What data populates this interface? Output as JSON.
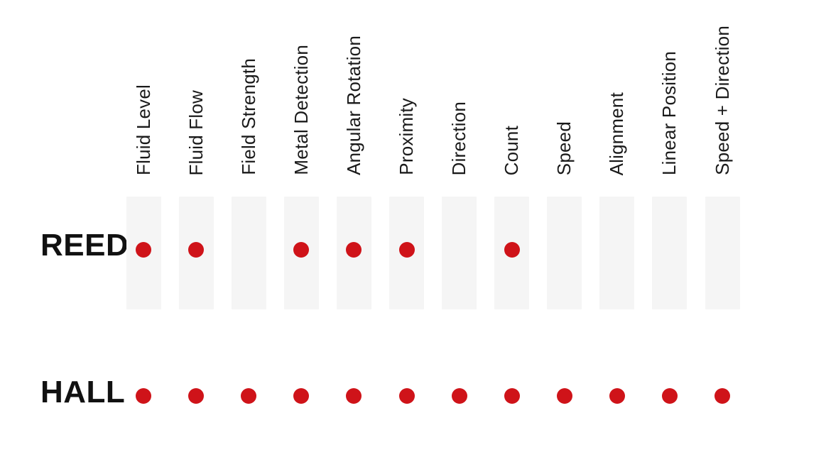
{
  "chart_data": {
    "type": "table",
    "subtype": "dot-matrix-comparison",
    "title": "",
    "categories": [
      "Fluid Level",
      "Fluid Flow",
      "Field Strength",
      "Metal Detection",
      "Angular Rotation",
      "Proximity",
      "Direction",
      "Count",
      "Speed",
      "Alignment",
      "Linear Position",
      "Speed + Direction"
    ],
    "series": [
      {
        "name": "REED",
        "values": [
          1,
          1,
          0,
          1,
          1,
          1,
          0,
          1,
          0,
          0,
          0,
          0
        ]
      },
      {
        "name": "HALL",
        "values": [
          1,
          1,
          1,
          1,
          1,
          1,
          1,
          1,
          1,
          1,
          1,
          1
        ]
      }
    ],
    "marker": "filled-circle",
    "legend_position": "none",
    "grid": false,
    "colors": {
      "dot": "#cf1319",
      "column_band": "#f5f5f5",
      "text": "#1a1a1a",
      "background": "#ffffff"
    },
    "layout_hints": {
      "header_labels_rotated_degrees": 90,
      "reed_row_has_column_bands": true,
      "hall_row_has_column_bands": false
    }
  }
}
